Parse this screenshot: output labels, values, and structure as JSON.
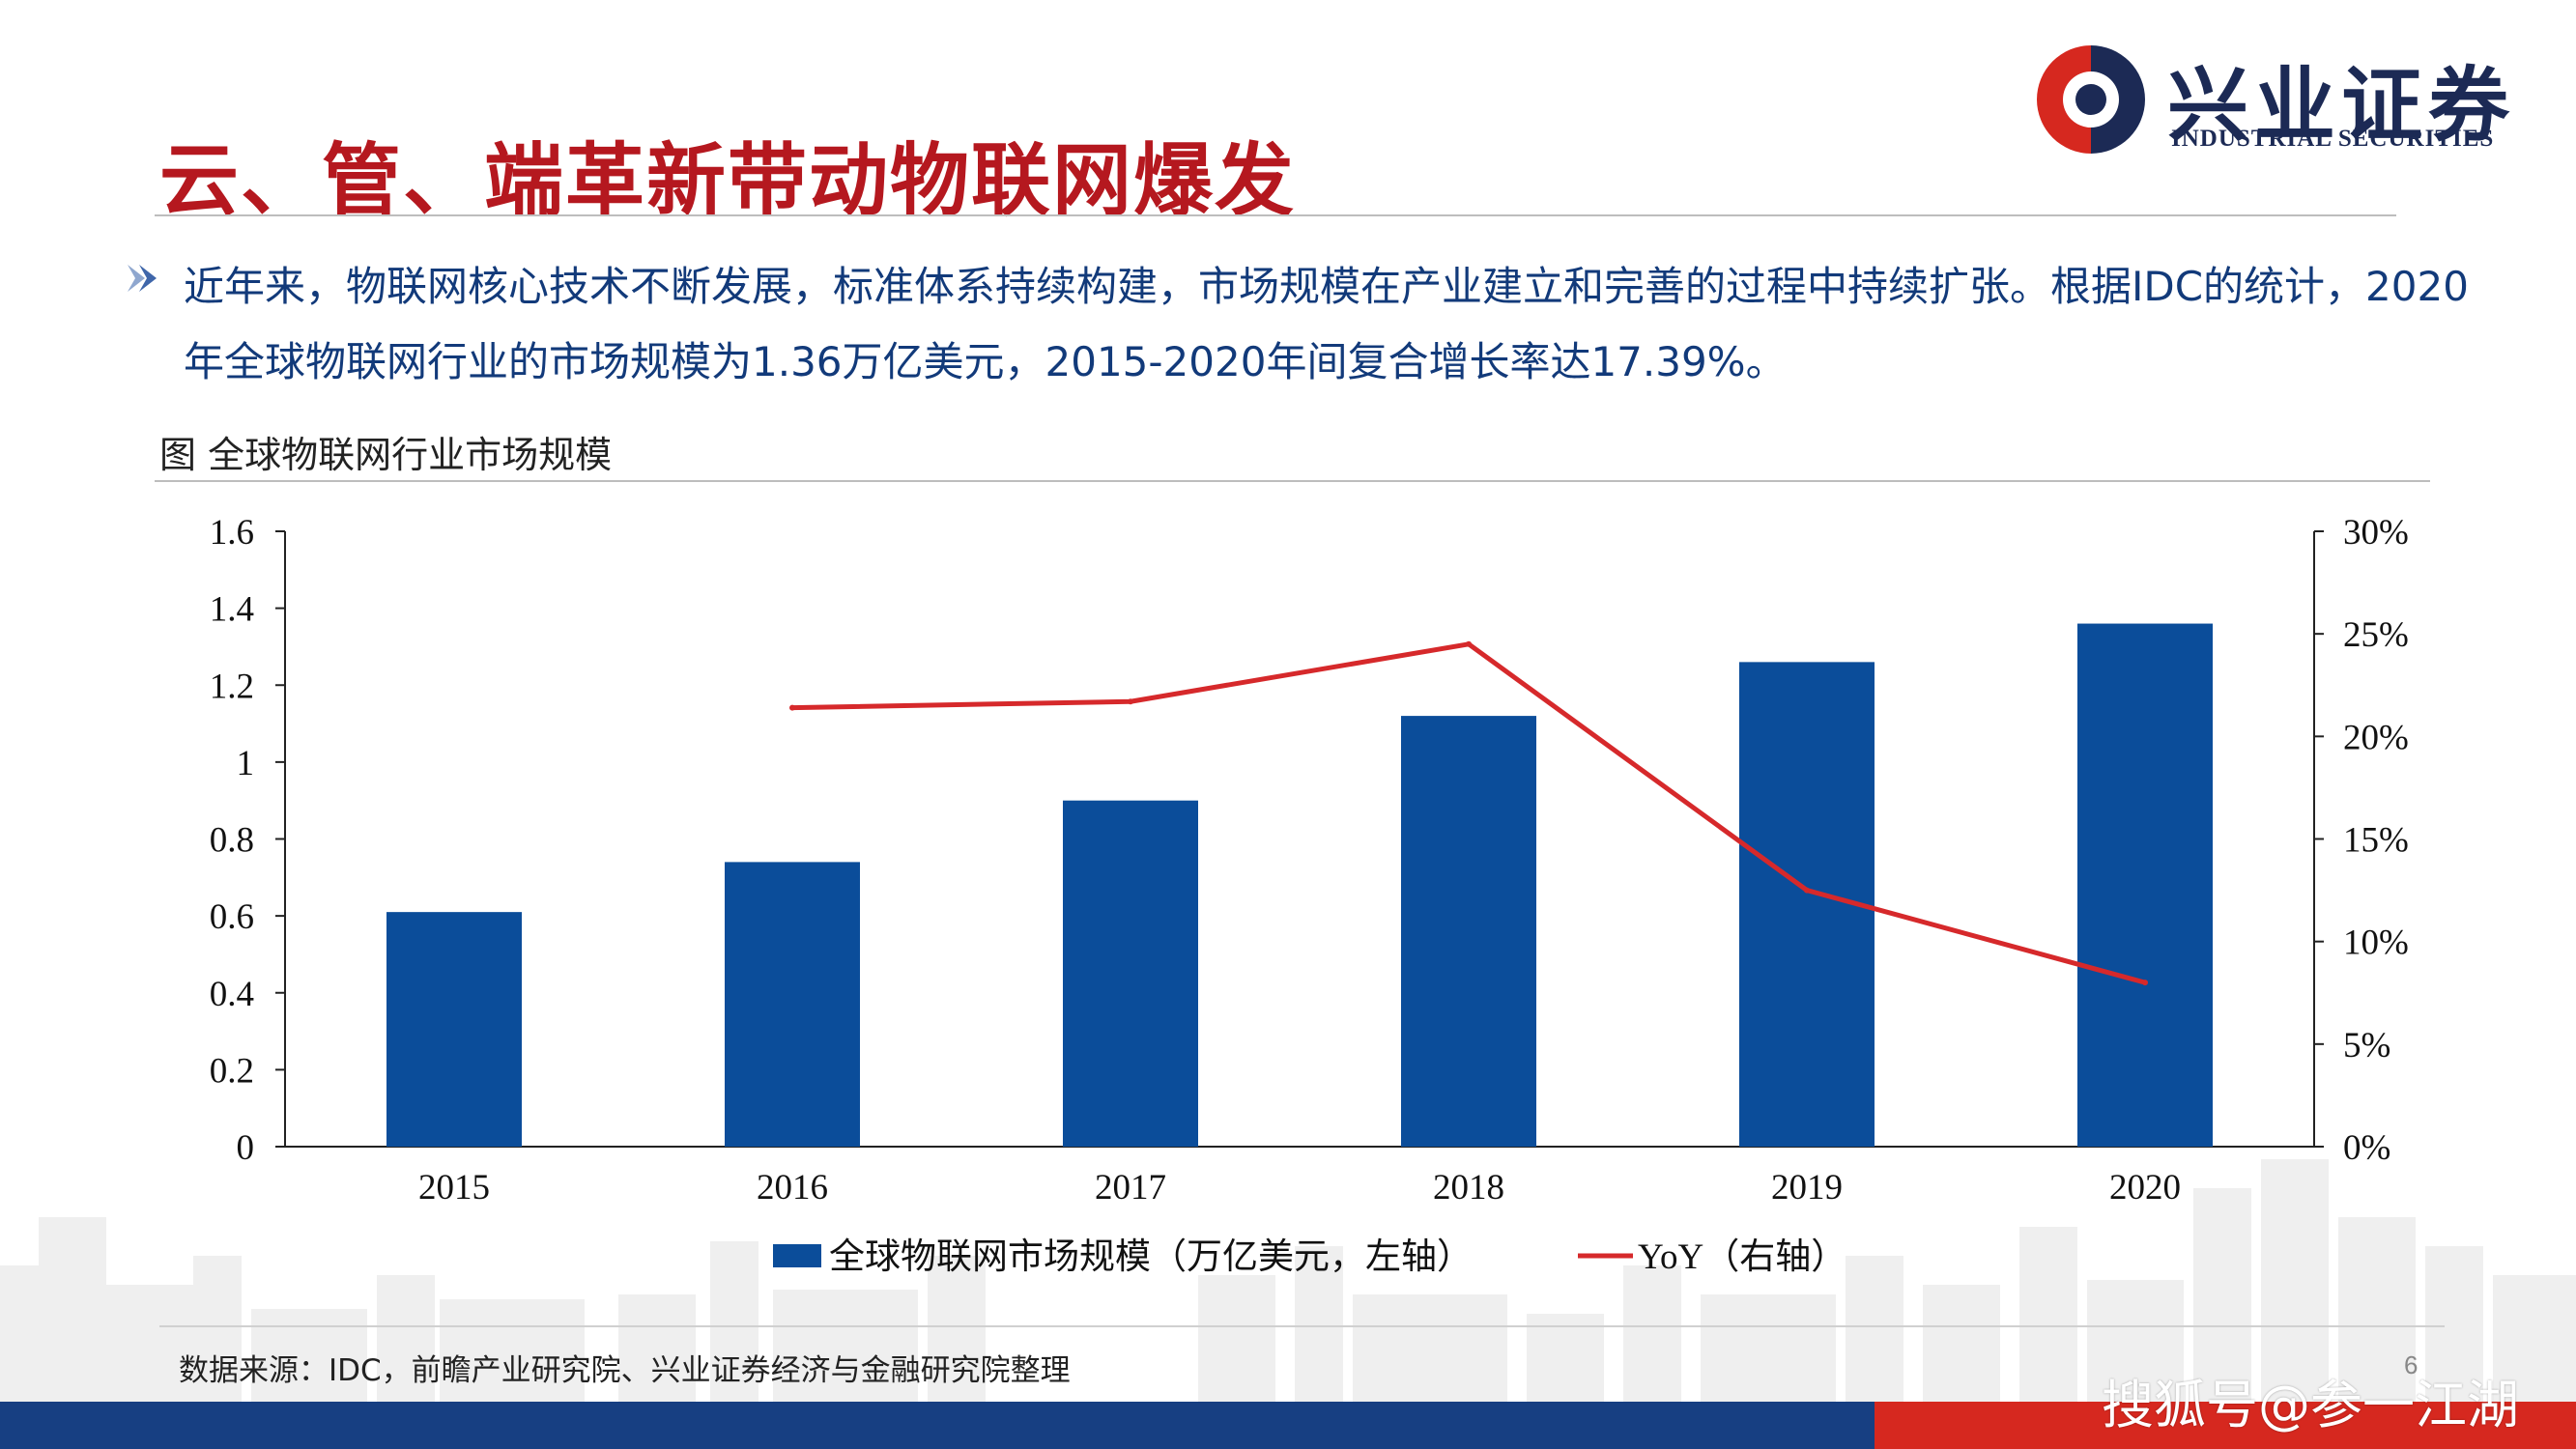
{
  "page": {
    "title": "云、管、端革新带动物联网爆发",
    "logo_cn": "兴业证券",
    "logo_en": "INDUSTRIAL SECURITIES",
    "bullet": "近年来，物联网核心技术不断发展，标准体系持续构建，市场规模在产业建立和完善的过程中持续扩张。根据IDC的统计，2020年全球物联网行业的市场规模为1.36万亿美元，2015-2020年间复合增长率达17.39%。",
    "chart_caption": "图 全球物联网行业市场规模",
    "source": "数据来源：IDC，前瞻产业研究院、兴业证券经济与金融研究院整理",
    "page_number": "6",
    "watermark": "搜狐号@参一江湖"
  },
  "colors": {
    "title": "#b5181f",
    "text": "#123a7a",
    "bar": "#0b4d9a",
    "line": "#d6292b",
    "band_blue": "#173f82",
    "band_red": "#d6281f",
    "logo_navy": "#1c2a55"
  },
  "chart_data": {
    "type": "bar",
    "categories": [
      "2015",
      "2016",
      "2017",
      "2018",
      "2019",
      "2020"
    ],
    "series": [
      {
        "name": "全球物联网市场规模（万亿美元，左轴）",
        "type": "bar",
        "axis": "left",
        "values": [
          0.61,
          0.74,
          0.9,
          1.12,
          1.26,
          1.36
        ]
      },
      {
        "name": "YoY（右轴）",
        "type": "line",
        "axis": "right",
        "values": [
          null,
          21.4,
          21.7,
          24.5,
          12.5,
          8.0
        ]
      }
    ],
    "y_left": {
      "ylim": [
        0,
        1.6
      ],
      "ticks": [
        "0",
        "0.2",
        "0.4",
        "0.6",
        "0.8",
        "1",
        "1.2",
        "1.4",
        "1.6"
      ]
    },
    "y_right": {
      "ylim": [
        0,
        30
      ],
      "ticks": [
        "0%",
        "5%",
        "10%",
        "15%",
        "20%",
        "25%",
        "30%"
      ]
    },
    "grid": false,
    "legend": "bottom"
  }
}
